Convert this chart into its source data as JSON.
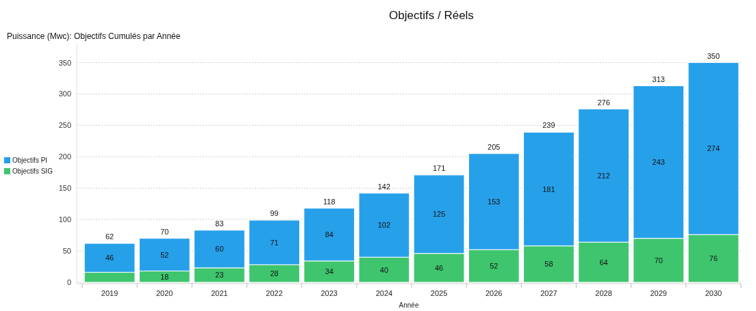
{
  "chart_data": {
    "type": "bar",
    "title": "Objectifs / Réels",
    "subtitle": "Puissance (Mwc): Objectifs Cumulés par Année",
    "xlabel": "Année",
    "categories": [
      "2019",
      "2020",
      "2021",
      "2022",
      "2023",
      "2024",
      "2025",
      "2026",
      "2027",
      "2028",
      "2029",
      "2030"
    ],
    "series": [
      {
        "name": "Objectifs SIG",
        "color": "#3fc56e",
        "values": [
          16,
          18,
          23,
          28,
          34,
          40,
          46,
          52,
          58,
          64,
          70,
          76
        ],
        "value_labels": [
          null,
          "18",
          "23",
          "28",
          "34",
          "40",
          "46",
          "52",
          "58",
          "64",
          "70",
          "76"
        ]
      },
      {
        "name": "Objectifs PI",
        "color": "#27a0ea",
        "values": [
          46,
          52,
          60,
          71,
          84,
          102,
          125,
          153,
          181,
          212,
          243,
          274
        ],
        "value_labels": [
          "46",
          "52",
          "60",
          "71",
          "84",
          "102",
          "125",
          "153",
          "181",
          "212",
          "243",
          "274"
        ]
      }
    ],
    "stacked": true,
    "totals": [
      "62",
      "70",
      "83",
      "99",
      "118",
      "142",
      "171",
      "205",
      "239",
      "276",
      "313",
      "350"
    ],
    "ylim": [
      0,
      380
    ],
    "yticks": [
      0,
      50,
      100,
      150,
      200,
      250,
      300,
      350
    ],
    "grid": "y",
    "legend": "left"
  }
}
